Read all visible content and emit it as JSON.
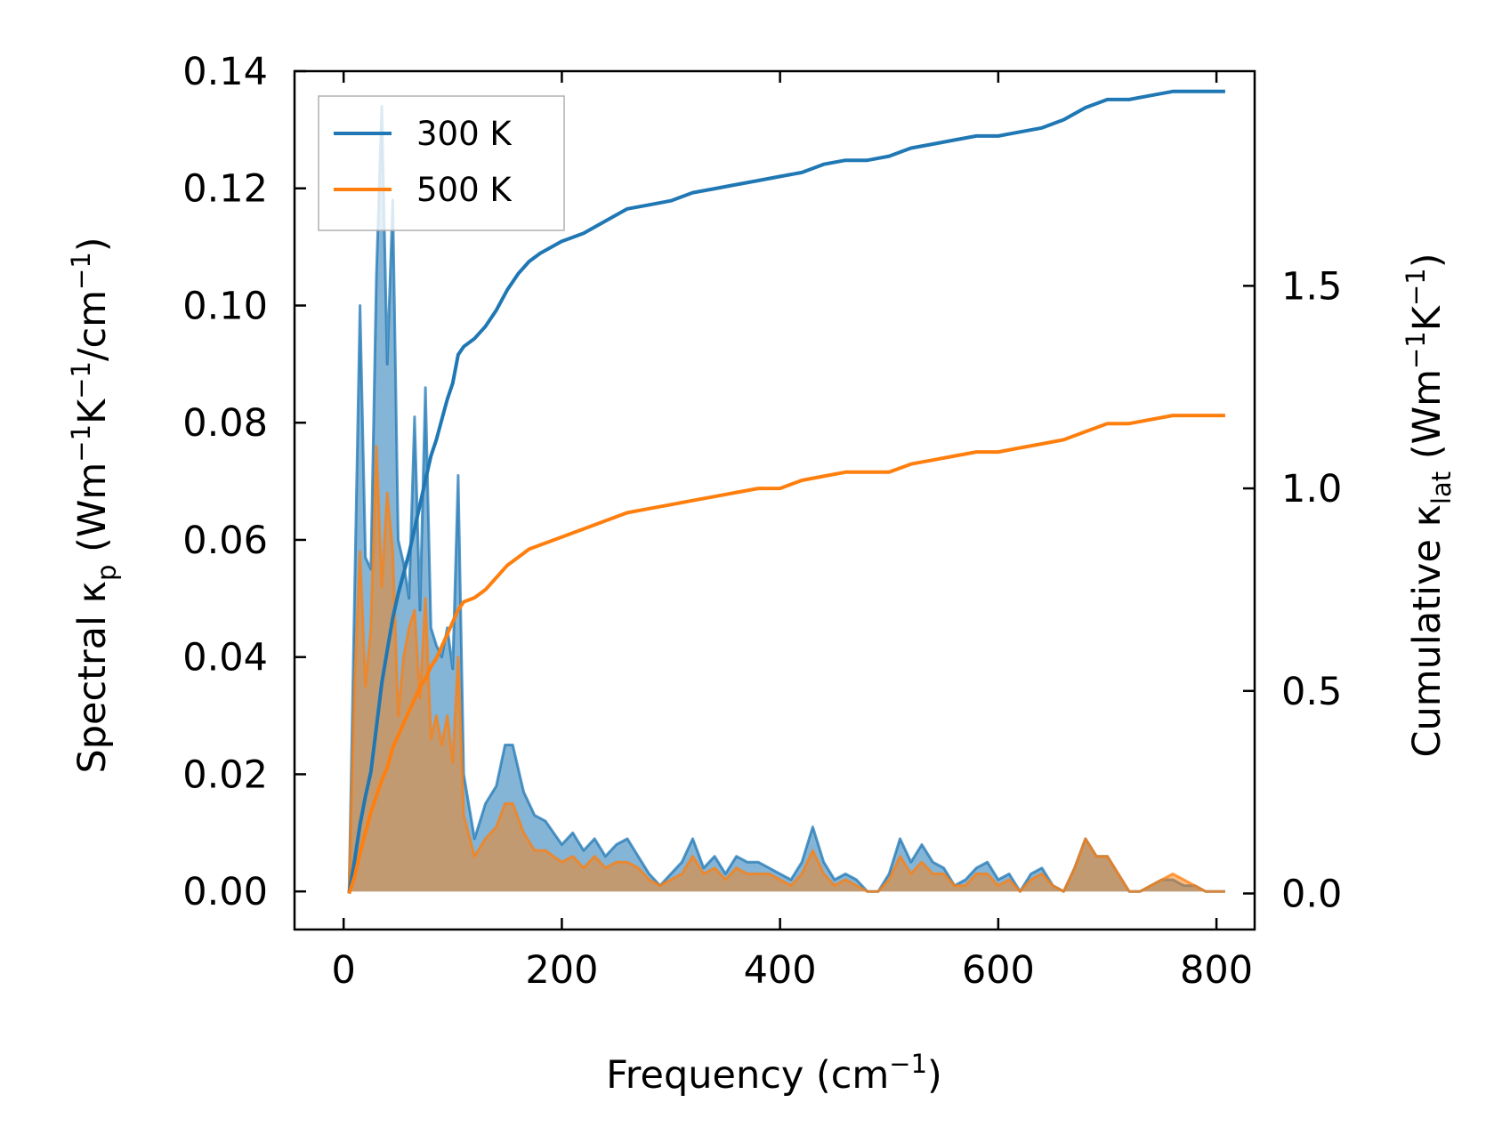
{
  "chart_data": {
    "type": "line",
    "title": "",
    "xlabel": {
      "base": "Frequency (cm",
      "sup": "−1",
      "end": ")"
    },
    "ylabel_left": {
      "a": "Spectral κ",
      "sub": "p",
      "b": " (Wm",
      "sup1": "−1",
      "c": "K",
      "sup2": "−1",
      "d": "/cm",
      "sup3": "−1",
      "e": ")"
    },
    "ylabel_right": {
      "a": "Cumulative κ",
      "sub": "lat",
      "b": " (Wm",
      "sup1": "−1",
      "c": "K",
      "sup2": "−1",
      "d": ")"
    },
    "xlim": [
      -45,
      835
    ],
    "ylim_left": [
      -0.0065,
      0.14
    ],
    "ylim_right": [
      -0.089,
      2.03
    ],
    "xticks": [
      "0",
      "200",
      "400",
      "600",
      "800"
    ],
    "xtick_values": [
      0,
      200,
      400,
      600,
      800
    ],
    "yticks_left": [
      "0.00",
      "0.02",
      "0.04",
      "0.06",
      "0.08",
      "0.10",
      "0.12",
      "0.14"
    ],
    "ytick_values_left": [
      0,
      0.02,
      0.04,
      0.06,
      0.08,
      0.1,
      0.12,
      0.14
    ],
    "yticks_right": [
      "0.0",
      "0.5",
      "1.0",
      "1.5"
    ],
    "ytick_values_right": [
      0,
      0.5,
      1.0,
      1.5
    ],
    "legend": {
      "position": "top-left",
      "entries": [
        "300 K",
        "500 K"
      ]
    },
    "colors": {
      "300K": "#1f77b4",
      "500K": "#ff7f0e",
      "overlap_fill": "#c49a74"
    },
    "spectral_x": [
      5,
      10,
      15,
      20,
      25,
      30,
      35,
      40,
      45,
      50,
      55,
      60,
      65,
      70,
      75,
      80,
      85,
      90,
      95,
      100,
      105,
      110,
      120,
      130,
      140,
      148,
      155,
      165,
      175,
      185,
      200,
      210,
      220,
      230,
      240,
      250,
      260,
      270,
      280,
      290,
      300,
      310,
      320,
      330,
      340,
      350,
      360,
      370,
      380,
      390,
      400,
      410,
      420,
      430,
      440,
      450,
      460,
      470,
      480,
      490,
      500,
      510,
      520,
      530,
      540,
      550,
      560,
      570,
      580,
      590,
      600,
      610,
      620,
      630,
      640,
      650,
      660,
      670,
      680,
      690,
      700,
      710,
      720,
      730,
      740,
      750,
      760,
      770,
      780,
      790,
      800,
      808
    ],
    "spectral_300K": [
      0,
      0.05,
      0.1,
      0.057,
      0.055,
      0.105,
      0.134,
      0.09,
      0.118,
      0.06,
      0.056,
      0.05,
      0.081,
      0.048,
      0.086,
      0.045,
      0.042,
      0.04,
      0.045,
      0.038,
      0.071,
      0.02,
      0.009,
      0.015,
      0.018,
      0.025,
      0.025,
      0.017,
      0.013,
      0.012,
      0.008,
      0.01,
      0.007,
      0.009,
      0.006,
      0.008,
      0.009,
      0.006,
      0.003,
      0.001,
      0.003,
      0.005,
      0.009,
      0.004,
      0.006,
      0.003,
      0.006,
      0.005,
      0.005,
      0.004,
      0.003,
      0.002,
      0.005,
      0.011,
      0.005,
      0.002,
      0.003,
      0.002,
      0,
      0,
      0.003,
      0.009,
      0.005,
      0.008,
      0.005,
      0.004,
      0.001,
      0.002,
      0.004,
      0.005,
      0.002,
      0.003,
      0,
      0.003,
      0.004,
      0.001,
      0,
      0.004,
      0.009,
      0.006,
      0.006,
      0.003,
      0,
      0,
      0.001,
      0.002,
      0.002,
      0.001,
      0.001,
      0,
      0,
      0
    ],
    "spectral_500K": [
      0,
      0.035,
      0.058,
      0.035,
      0.045,
      0.076,
      0.052,
      0.068,
      0.058,
      0.03,
      0.04,
      0.045,
      0.048,
      0.033,
      0.05,
      0.026,
      0.03,
      0.025,
      0.03,
      0.022,
      0.04,
      0.013,
      0.006,
      0.009,
      0.011,
      0.015,
      0.015,
      0.01,
      0.007,
      0.007,
      0.005,
      0.006,
      0.004,
      0.006,
      0.004,
      0.005,
      0.005,
      0.004,
      0.002,
      0.001,
      0.002,
      0.003,
      0.006,
      0.003,
      0.004,
      0.002,
      0.004,
      0.003,
      0.003,
      0.003,
      0.002,
      0.001,
      0.003,
      0.007,
      0.003,
      0.001,
      0.002,
      0.001,
      0,
      0,
      0.002,
      0.006,
      0.003,
      0.005,
      0.003,
      0.003,
      0.001,
      0.001,
      0.003,
      0.003,
      0.001,
      0.002,
      0,
      0.002,
      0.003,
      0.001,
      0,
      0.004,
      0.009,
      0.006,
      0.006,
      0.003,
      0,
      0,
      0.001,
      0.002,
      0.003,
      0.002,
      0.001,
      0,
      0,
      0
    ],
    "cumulative_x": [
      5,
      10,
      15,
      20,
      25,
      30,
      35,
      40,
      45,
      50,
      55,
      60,
      65,
      70,
      75,
      80,
      85,
      90,
      95,
      100,
      105,
      110,
      120,
      130,
      140,
      150,
      160,
      170,
      180,
      200,
      220,
      240,
      260,
      280,
      300,
      320,
      340,
      360,
      380,
      400,
      420,
      440,
      460,
      480,
      500,
      520,
      540,
      560,
      580,
      600,
      620,
      640,
      660,
      680,
      700,
      720,
      740,
      760,
      780,
      800,
      808
    ],
    "cumulative_300K": [
      0,
      0.08,
      0.17,
      0.24,
      0.3,
      0.41,
      0.52,
      0.6,
      0.68,
      0.74,
      0.79,
      0.84,
      0.9,
      0.96,
      1.02,
      1.08,
      1.12,
      1.17,
      1.22,
      1.26,
      1.33,
      1.35,
      1.37,
      1.4,
      1.44,
      1.49,
      1.53,
      1.56,
      1.58,
      1.61,
      1.63,
      1.66,
      1.69,
      1.7,
      1.71,
      1.73,
      1.74,
      1.75,
      1.76,
      1.77,
      1.78,
      1.8,
      1.81,
      1.81,
      1.82,
      1.84,
      1.85,
      1.86,
      1.87,
      1.87,
      1.88,
      1.89,
      1.91,
      1.94,
      1.96,
      1.96,
      1.97,
      1.98,
      1.98,
      1.98,
      1.98
    ],
    "cumulative_500K": [
      0,
      0.04,
      0.1,
      0.15,
      0.2,
      0.24,
      0.28,
      0.31,
      0.36,
      0.39,
      0.42,
      0.45,
      0.48,
      0.51,
      0.53,
      0.56,
      0.58,
      0.61,
      0.64,
      0.67,
      0.7,
      0.72,
      0.73,
      0.75,
      0.78,
      0.81,
      0.83,
      0.85,
      0.86,
      0.88,
      0.9,
      0.92,
      0.94,
      0.95,
      0.96,
      0.97,
      0.98,
      0.99,
      1.0,
      1.0,
      1.02,
      1.03,
      1.04,
      1.04,
      1.04,
      1.06,
      1.07,
      1.08,
      1.09,
      1.09,
      1.1,
      1.11,
      1.12,
      1.14,
      1.16,
      1.16,
      1.17,
      1.18,
      1.18,
      1.18,
      1.18
    ]
  }
}
